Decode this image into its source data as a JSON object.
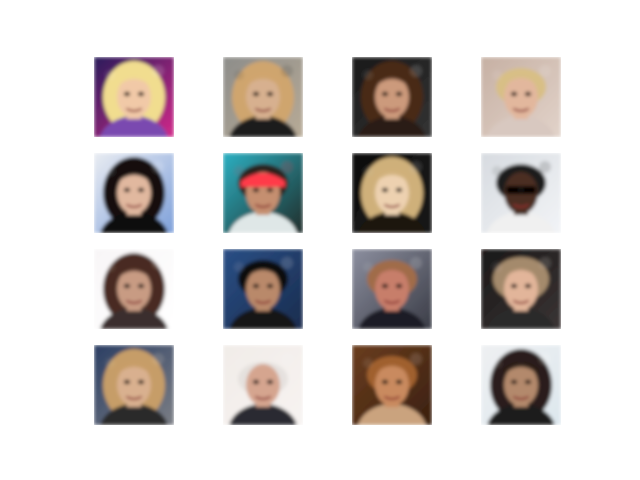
{
  "figure": {
    "rows": 4,
    "cols": 4,
    "background": "#ffffff"
  },
  "images": [
    {
      "bg": "#2a1a5a",
      "bg2": "#d12a8a",
      "skin": "#f1c9a7",
      "hair": "#f1dd8f",
      "shirt": "#7a4ab0",
      "accent": "#ffffff",
      "style": "blonde-curly"
    },
    {
      "bg": "#8d8d8a",
      "bg2": "#b7aa96",
      "skin": "#d7b08f",
      "hair": "#cfa56e",
      "shirt": "#1f1f1f",
      "accent": "#2a2a2a",
      "style": "long-light"
    },
    {
      "bg": "#191919",
      "bg2": "#333333",
      "skin": "#cc9a7b",
      "hair": "#4a2a18",
      "shirt": "#2b1a12",
      "accent": "#e6e6e6",
      "style": "long-dark"
    },
    {
      "bg": "#c6b0a3",
      "bg2": "#e2d3ca",
      "skin": "#e2b79d",
      "hair": "#d8bf86",
      "shirt": "#d8c8c0",
      "accent": "#f5ede8",
      "style": "short-light"
    },
    {
      "bg": "#e9ecf2",
      "bg2": "#7ea0da",
      "skin": "#e1b89f",
      "hair": "#151111",
      "shirt": "#111111",
      "accent": "#ffffff",
      "style": "long-dark"
    },
    {
      "bg": "#2db0c2",
      "bg2": "#1f2d2a",
      "skin": "#c58f6f",
      "hair": "#2a241d",
      "shirt": "#dfe7e7",
      "accent": "#ff3b4a",
      "style": "cap"
    },
    {
      "bg": "#0f0f0f",
      "bg2": "#151515",
      "skin": "#edd1b0",
      "hair": "#cfb07a",
      "shirt": "#1a1410",
      "accent": "#d0d0d0",
      "style": "long-light"
    },
    {
      "bg": "#d7dbe0",
      "bg2": "#f2f4f7",
      "skin": "#4b2e24",
      "hair": "#1a1a1a",
      "shirt": "#f0f0f0",
      "accent": "#0f0f0f",
      "style": "sunglasses"
    },
    {
      "bg": "#f8f6f7",
      "bg2": "#ffffff",
      "skin": "#c89b83",
      "hair": "#4a2b20",
      "shirt": "#3a2f2f",
      "accent": "#ffffff",
      "style": "long-dark"
    },
    {
      "bg": "#2a4f86",
      "bg2": "#1a2c4e",
      "skin": "#b9896b",
      "hair": "#111111",
      "shirt": "#131313",
      "accent": "#eaeaea",
      "style": "short-dark"
    },
    {
      "bg": "#8c8f9f",
      "bg2": "#3a3c46",
      "skin": "#c77e6b",
      "hair": "#a06c4a",
      "shirt": "#1a1d26",
      "accent": "#f0f0f0",
      "style": "short-light"
    },
    {
      "bg": "#1a1818",
      "bg2": "#3a3434",
      "skin": "#e2b59a",
      "hair": "#a48a6c",
      "shirt": "#2a2a2a",
      "accent": "#efe6e0",
      "style": "messy-light"
    },
    {
      "bg": "#2b3e63",
      "bg2": "#7b7e85",
      "skin": "#d9b08f",
      "hair": "#c69d67",
      "shirt": "#2a2a2a",
      "accent": "#f0e0c8",
      "style": "long-light"
    },
    {
      "bg": "#f1ece8",
      "bg2": "#f7f3f1",
      "skin": "#d5a58f",
      "hair": "#e0dcda",
      "shirt": "#2a2b31",
      "accent": "#f9f9f9",
      "style": "bald"
    },
    {
      "bg": "#6a3d1f",
      "bg2": "#3a200f",
      "skin": "#c98a5e",
      "hair": "#a0612f",
      "shirt": "#caa37e",
      "accent": "#f2e2d0",
      "style": "short-light"
    },
    {
      "bg": "#eef0f2",
      "bg2": "#dde7ee",
      "skin": "#b3896c",
      "hair": "#2a1f1a",
      "shirt": "#1a1a1a",
      "accent": "#ffffff",
      "style": "long-dark"
    }
  ]
}
